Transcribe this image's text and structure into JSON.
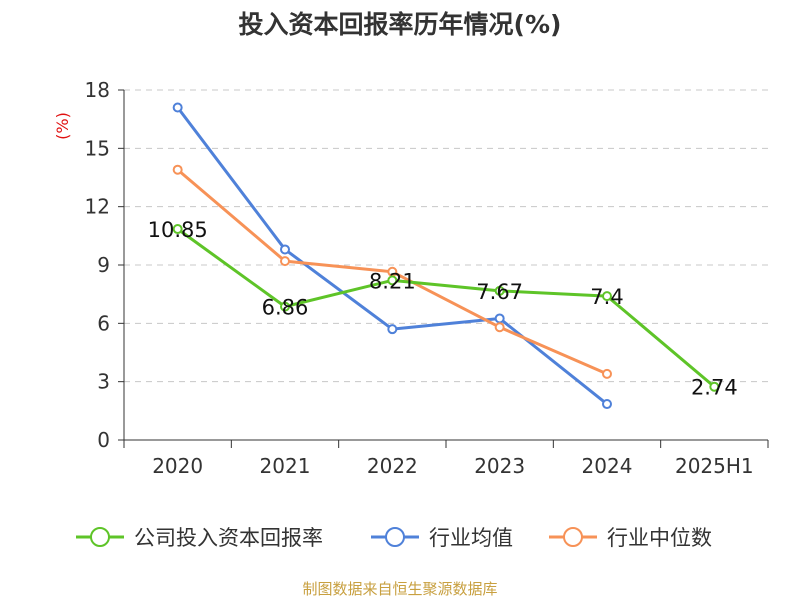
{
  "colors": {
    "company": "#5ec428",
    "industry_avg": "#4f81d9",
    "industry_median": "#f79257",
    "grid": "#c8c8c8",
    "axis": "#333333",
    "source": "#c8a040",
    "unit": "#e01010"
  },
  "chart_data": {
    "type": "line",
    "title": "投入资本回报率历年情况(%)",
    "ylabel": "(%)",
    "xlabel": "",
    "categories": [
      "2020",
      "2021",
      "2022",
      "2023",
      "2024",
      "2025H1"
    ],
    "ylim": [
      0,
      18
    ],
    "yticks": [
      0,
      3,
      6,
      9,
      12,
      15,
      18
    ],
    "grid": "horizontal-dashed",
    "legend_position": "bottom",
    "series": [
      {
        "name": "公司投入资本回报率",
        "color_key": "company",
        "values": [
          10.85,
          6.86,
          8.21,
          7.67,
          7.4,
          2.74
        ],
        "labels": [
          "10.85",
          "6.86",
          "8.21",
          "7.67",
          "7.4",
          "2.74"
        ],
        "show_labels": true
      },
      {
        "name": "行业均值",
        "color_key": "industry_avg",
        "values": [
          17.1,
          9.8,
          5.7,
          6.25,
          1.85,
          null
        ],
        "show_labels": false
      },
      {
        "name": "行业中位数",
        "color_key": "industry_median",
        "values": [
          13.9,
          9.2,
          8.65,
          5.8,
          3.4,
          null
        ],
        "show_labels": false
      }
    ]
  },
  "footer": {
    "source": "制图数据来自恒生聚源数据库"
  }
}
